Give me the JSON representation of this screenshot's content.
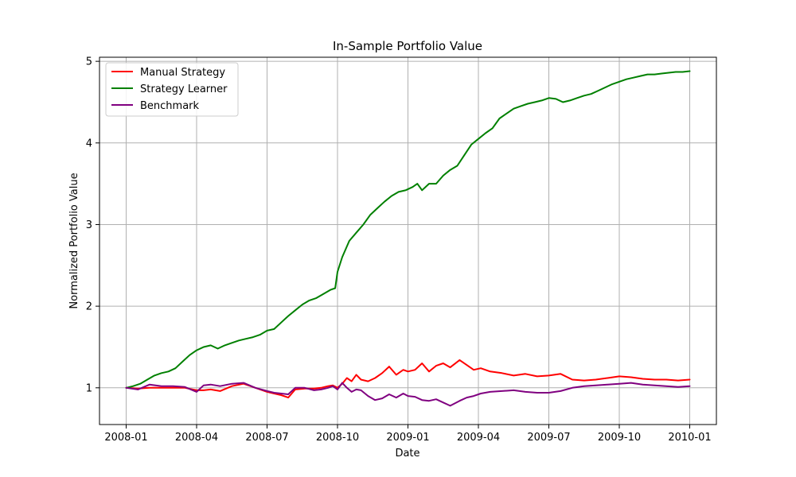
{
  "chart_data": {
    "type": "line",
    "title": "In-Sample Portfolio Value",
    "xlabel": "Date",
    "ylabel": "Normalized Portfolio Value",
    "xlim": [
      0,
      24
    ],
    "ylim": [
      0.55,
      5.05
    ],
    "x_ticks": [
      {
        "value": 0,
        "label": "2008-01"
      },
      {
        "value": 3,
        "label": "2008-04"
      },
      {
        "value": 6,
        "label": "2008-07"
      },
      {
        "value": 9,
        "label": "2008-10"
      },
      {
        "value": 12,
        "label": "2009-01"
      },
      {
        "value": 15,
        "label": "2009-04"
      },
      {
        "value": 18,
        "label": "2009-07"
      },
      {
        "value": 21,
        "label": "2009-10"
      },
      {
        "value": 24,
        "label": "2010-01"
      }
    ],
    "y_ticks": [
      {
        "value": 1,
        "label": "1"
      },
      {
        "value": 2,
        "label": "2"
      },
      {
        "value": 3,
        "label": "3"
      },
      {
        "value": 4,
        "label": "4"
      },
      {
        "value": 5,
        "label": "5"
      }
    ],
    "grid": true,
    "legend_position": "top-left",
    "series": [
      {
        "name": "Manual Strategy",
        "color": "#ff0000",
        "x": [
          0,
          0.5,
          1,
          1.5,
          2,
          2.5,
          3,
          3.3,
          3.6,
          4,
          4.5,
          5,
          5.5,
          6,
          6.3,
          6.6,
          6.9,
          7.2,
          7.6,
          8,
          8.3,
          8.6,
          8.8,
          9,
          9.2,
          9.4,
          9.6,
          9.8,
          10,
          10.3,
          10.6,
          10.9,
          11.2,
          11.5,
          11.8,
          12,
          12.3,
          12.6,
          12.9,
          13.2,
          13.5,
          13.8,
          14.2,
          14.5,
          14.8,
          15.1,
          15.5,
          16,
          16.5,
          17,
          17.5,
          18,
          18.5,
          19,
          19.5,
          20,
          20.5,
          21,
          21.5,
          22,
          22.5,
          23,
          23.5,
          24
        ],
        "values": [
          1.0,
          0.99,
          1.0,
          1.0,
          1.0,
          1.0,
          0.97,
          0.97,
          0.98,
          0.96,
          1.02,
          1.05,
          1.0,
          0.95,
          0.93,
          0.91,
          0.88,
          0.98,
          0.99,
          0.99,
          1.0,
          1.02,
          1.03,
          1.0,
          1.05,
          1.12,
          1.08,
          1.16,
          1.1,
          1.08,
          1.12,
          1.18,
          1.26,
          1.16,
          1.22,
          1.2,
          1.22,
          1.3,
          1.2,
          1.27,
          1.3,
          1.25,
          1.34,
          1.28,
          1.22,
          1.24,
          1.2,
          1.18,
          1.15,
          1.17,
          1.14,
          1.15,
          1.17,
          1.1,
          1.09,
          1.1,
          1.12,
          1.14,
          1.13,
          1.11,
          1.1,
          1.1,
          1.09,
          1.1
        ]
      },
      {
        "name": "Strategy Learner",
        "color": "#008000",
        "x": [
          0,
          0.3,
          0.6,
          0.9,
          1.2,
          1.5,
          1.8,
          2.1,
          2.4,
          2.7,
          3.0,
          3.3,
          3.6,
          3.9,
          4.2,
          4.5,
          4.8,
          5.1,
          5.4,
          5.7,
          6.0,
          6.3,
          6.6,
          6.9,
          7.2,
          7.5,
          7.8,
          8.1,
          8.4,
          8.7,
          8.9,
          9.0,
          9.2,
          9.5,
          9.8,
          10.1,
          10.4,
          10.7,
          11.0,
          11.3,
          11.6,
          11.9,
          12.2,
          12.4,
          12.6,
          12.9,
          13.2,
          13.5,
          13.8,
          14.1,
          14.4,
          14.7,
          15.0,
          15.3,
          15.6,
          15.9,
          16.2,
          16.5,
          16.8,
          17.1,
          17.4,
          17.7,
          18.0,
          18.3,
          18.6,
          18.9,
          19.2,
          19.5,
          19.8,
          20.1,
          20.4,
          20.7,
          21.0,
          21.3,
          21.6,
          21.9,
          22.2,
          22.5,
          22.8,
          23.1,
          23.4,
          23.7,
          24.0
        ],
        "values": [
          1.0,
          1.02,
          1.05,
          1.1,
          1.15,
          1.18,
          1.2,
          1.24,
          1.32,
          1.4,
          1.46,
          1.5,
          1.52,
          1.48,
          1.52,
          1.55,
          1.58,
          1.6,
          1.62,
          1.65,
          1.7,
          1.72,
          1.8,
          1.88,
          1.95,
          2.02,
          2.07,
          2.1,
          2.15,
          2.2,
          2.22,
          2.42,
          2.6,
          2.8,
          2.9,
          3.0,
          3.12,
          3.2,
          3.28,
          3.35,
          3.4,
          3.42,
          3.46,
          3.5,
          3.42,
          3.5,
          3.5,
          3.6,
          3.67,
          3.72,
          3.85,
          3.98,
          4.05,
          4.12,
          4.18,
          4.3,
          4.36,
          4.42,
          4.45,
          4.48,
          4.5,
          4.52,
          4.55,
          4.54,
          4.5,
          4.52,
          4.55,
          4.58,
          4.6,
          4.64,
          4.68,
          4.72,
          4.75,
          4.78,
          4.8,
          4.82,
          4.84,
          4.84,
          4.85,
          4.86,
          4.87,
          4.87,
          4.88
        ]
      },
      {
        "name": "Benchmark",
        "color": "#800080",
        "x": [
          0,
          0.5,
          1,
          1.5,
          2,
          2.5,
          3,
          3.3,
          3.6,
          4,
          4.5,
          5,
          5.5,
          6,
          6.3,
          6.6,
          6.9,
          7.2,
          7.6,
          8,
          8.3,
          8.6,
          8.8,
          9,
          9.2,
          9.4,
          9.6,
          9.8,
          10,
          10.3,
          10.6,
          10.9,
          11.2,
          11.5,
          11.8,
          12,
          12.3,
          12.6,
          12.9,
          13.2,
          13.5,
          13.8,
          14.2,
          14.5,
          14.8,
          15.1,
          15.5,
          16,
          16.5,
          17,
          17.5,
          18,
          18.5,
          19,
          19.5,
          20,
          20.5,
          21,
          21.5,
          22,
          22.5,
          23,
          23.5,
          24
        ],
        "values": [
          1.0,
          0.98,
          1.04,
          1.02,
          1.02,
          1.01,
          0.95,
          1.03,
          1.04,
          1.02,
          1.05,
          1.06,
          1.0,
          0.96,
          0.94,
          0.93,
          0.92,
          1.0,
          1.0,
          0.97,
          0.98,
          1.0,
          1.02,
          0.98,
          1.06,
          1.0,
          0.95,
          0.98,
          0.97,
          0.9,
          0.85,
          0.87,
          0.92,
          0.88,
          0.93,
          0.9,
          0.89,
          0.85,
          0.84,
          0.86,
          0.82,
          0.78,
          0.84,
          0.88,
          0.9,
          0.93,
          0.95,
          0.96,
          0.97,
          0.95,
          0.94,
          0.94,
          0.96,
          1.0,
          1.02,
          1.03,
          1.04,
          1.05,
          1.06,
          1.04,
          1.03,
          1.02,
          1.01,
          1.02
        ]
      }
    ]
  }
}
